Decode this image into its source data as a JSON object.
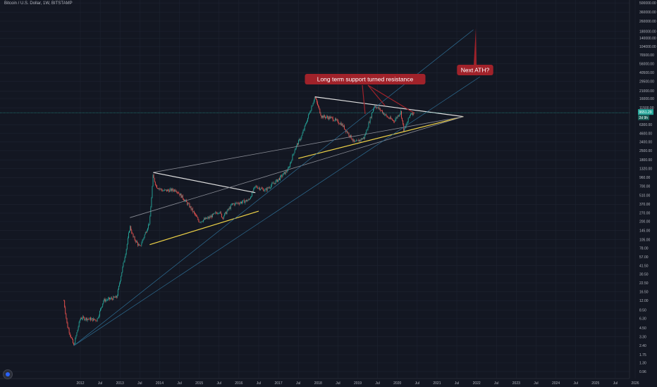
{
  "header": {
    "symbol_title": "Bitcoin / U.S. Dollar, 1W, BITSTAMP"
  },
  "colors": {
    "background": "#131722",
    "grid": "#1e2331",
    "up_candle": "#26a69a",
    "down_candle": "#ef5350",
    "pattern_white": "#e0e0e0",
    "support_yellow": "#f0d448",
    "trend_blue": "#2e6f96",
    "annotation": "#a0222a",
    "price_line": "#26a69a"
  },
  "annotations": {
    "resistance": "Long term support turned resistance",
    "next_ath": "Next ATH?"
  },
  "current_price": {
    "price_label": "9651.29",
    "countdown_label": "2d 9h"
  },
  "chart_data": {
    "type": "candlestick",
    "title": "Bitcoin / U.S. Dollar, 1W, BITSTAMP",
    "y_scale": "log",
    "y_tick_labels": [
      "0.96",
      "1.30",
      "1.75",
      "2.40",
      "3.30",
      "4.50",
      "6.30",
      "8.50",
      "12.00",
      "16.50",
      "22.50",
      "30.50",
      "41.50",
      "57.00",
      "78.00",
      "105.00",
      "145.00",
      "200.00",
      "270.00",
      "370.00",
      "510.00",
      "700.00",
      "960.00",
      "1320.00",
      "1800.00",
      "2500.00",
      "3400.00",
      "4600.00",
      "6300.00",
      "11500.00",
      "16000.00",
      "21000.00",
      "29500.00",
      "40500.00",
      "56000.00",
      "76500.00",
      "104000.00",
      "140000.00",
      "180000.00",
      "260000.00",
      "360000.00",
      "500000.00"
    ],
    "x_tick_labels": [
      "2012",
      "Jul",
      "2013",
      "Jul",
      "2014",
      "Jul",
      "2015",
      "Jul",
      "2016",
      "Jul",
      "2017",
      "Jul",
      "2018",
      "Jul",
      "2019",
      "Jul",
      "2020",
      "Jul",
      "2021",
      "Jul",
      "2022",
      "Jul",
      "2023",
      "Jul",
      "2024",
      "Jul",
      "2025",
      "Jul",
      "2026"
    ],
    "price_anchors": [
      [
        "2011-08",
        12
      ],
      [
        "2011-09",
        5
      ],
      [
        "2011-11",
        2.4
      ],
      [
        "2012-01",
        6.5
      ],
      [
        "2012-06",
        6
      ],
      [
        "2012-08",
        12
      ],
      [
        "2012-12",
        13.5
      ],
      [
        "2013-03",
        80
      ],
      [
        "2013-04",
        170
      ],
      [
        "2013-05",
        115
      ],
      [
        "2013-07",
        80
      ],
      [
        "2013-10",
        200
      ],
      [
        "2013-11",
        1000
      ],
      [
        "2013-12",
        700
      ],
      [
        "2014-02",
        600
      ],
      [
        "2014-06",
        620
      ],
      [
        "2014-10",
        350
      ],
      [
        "2015-01",
        200
      ],
      [
        "2015-04",
        230
      ],
      [
        "2015-07",
        290
      ],
      [
        "2015-08",
        230
      ],
      [
        "2015-11",
        370
      ],
      [
        "2016-01",
        390
      ],
      [
        "2016-04",
        430
      ],
      [
        "2016-06",
        700
      ],
      [
        "2016-09",
        610
      ],
      [
        "2017-01",
        900
      ],
      [
        "2017-04",
        1300
      ],
      [
        "2017-06",
        2700
      ],
      [
        "2017-08",
        4200
      ],
      [
        "2017-12",
        17000
      ],
      [
        "2018-02",
        8500
      ],
      [
        "2018-05",
        8000
      ],
      [
        "2018-08",
        6500
      ],
      [
        "2018-11",
        4000
      ],
      [
        "2018-12",
        3300
      ],
      [
        "2019-03",
        4000
      ],
      [
        "2019-06",
        12500
      ],
      [
        "2019-08",
        10500
      ],
      [
        "2019-10",
        8200
      ],
      [
        "2019-12",
        7200
      ],
      [
        "2020-02",
        10000
      ],
      [
        "2020-03",
        5000
      ],
      [
        "2020-05",
        9500
      ],
      [
        "2020-06",
        9650
      ]
    ],
    "drawn_lines": [
      {
        "name": "pattern-2013-top",
        "color": "white",
        "points": [
          [
            "2013-11",
            1150
          ],
          [
            "2016-06",
            560
          ]
        ]
      },
      {
        "name": "pattern-2013-support",
        "color": "yellow",
        "points": [
          [
            "2013-10",
            88
          ],
          [
            "2016-07",
            290
          ]
        ]
      },
      {
        "name": "pattern-2017-top",
        "color": "white",
        "points": [
          [
            "2017-12",
            17000
          ],
          [
            "2021-09",
            8400
          ]
        ]
      },
      {
        "name": "pattern-2017-support",
        "color": "yellow",
        "points": [
          [
            "2017-07",
            1900
          ],
          [
            "2021-09",
            8400
          ]
        ]
      },
      {
        "name": "long-term-resistance-upper",
        "color": "gray",
        "points": [
          [
            "2013-11",
            1150
          ],
          [
            "2021-09",
            8400
          ]
        ]
      },
      {
        "name": "long-term-resistance-lower",
        "color": "gray",
        "points": [
          [
            "2013-04",
            230
          ],
          [
            "2021-09",
            8400
          ]
        ]
      },
      {
        "name": "blue-trend-channel",
        "color": "blue",
        "points": [
          [
            "2011-11",
            2.4
          ],
          [
            "2021-12",
            190000
          ]
        ]
      },
      {
        "name": "blue-trend-inner",
        "color": "blue",
        "points": [
          [
            "2011-11",
            2.4
          ],
          [
            "2022-02",
            35000
          ]
        ]
      }
    ]
  }
}
